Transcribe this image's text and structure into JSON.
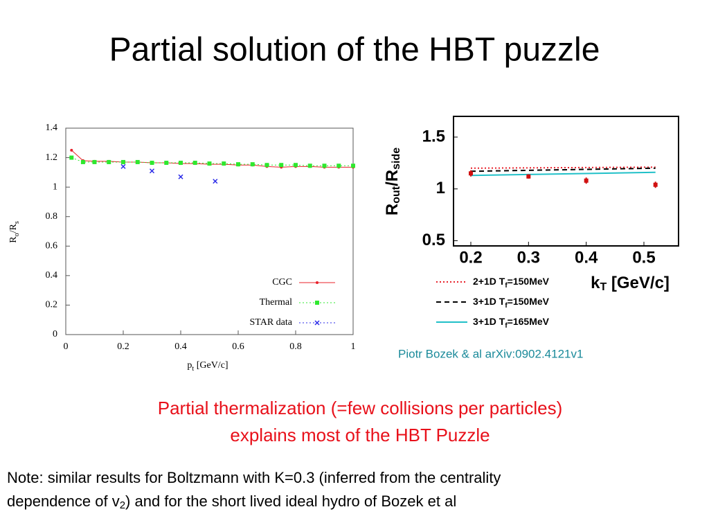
{
  "slide": {
    "title": "Partial solution of the HBT puzzle",
    "credit": "Piotr Bozek & al arXiv:0902.4121v1",
    "conclusion": [
      "Partial thermalization (=few collisions per particles)",
      "explains most of the HBT Puzzle"
    ],
    "note": {
      "line1": "Note: similar results for  Boltzmann with K=0.3 (inferred from the centrality",
      "line2": [
        "dependence of v",
        "2",
        ") and for the short lived ideal hydro of Bozek et al"
      ]
    }
  },
  "chart_data": [
    {
      "type": "line",
      "xlabel": [
        "p",
        "t",
        " [GeV/c]"
      ],
      "ylabel": [
        "R",
        "o",
        "/R",
        "s"
      ],
      "xlim": [
        0,
        1
      ],
      "xticks": [
        0,
        0.2,
        0.4,
        0.6,
        0.8,
        1
      ],
      "ylim": [
        0,
        1.4
      ],
      "yticks": [
        0,
        0.2,
        0.4,
        0.6,
        0.8,
        1,
        1.2,
        1.4
      ],
      "legend": "lower right",
      "series": [
        {
          "name": "CGC",
          "color": "#e8202a",
          "style": "line",
          "dash": "solid",
          "marker": "dot",
          "x": [
            0.02,
            0.06,
            0.1,
            0.15,
            0.2,
            0.25,
            0.3,
            0.35,
            0.4,
            0.45,
            0.5,
            0.55,
            0.6,
            0.65,
            0.7,
            0.75,
            0.8,
            0.85,
            0.9,
            0.95,
            1.0
          ],
          "values": [
            1.25,
            1.18,
            1.175,
            1.175,
            1.17,
            1.17,
            1.165,
            1.165,
            1.16,
            1.16,
            1.155,
            1.155,
            1.15,
            1.15,
            1.14,
            1.135,
            1.14,
            1.14,
            1.135,
            1.135,
            1.135
          ]
        },
        {
          "name": "Thermal",
          "color": "#2ee82e",
          "style": "line",
          "dash": "dotted",
          "marker": "square",
          "x": [
            0.02,
            0.06,
            0.1,
            0.15,
            0.2,
            0.25,
            0.3,
            0.35,
            0.4,
            0.45,
            0.5,
            0.55,
            0.6,
            0.65,
            0.7,
            0.75,
            0.8,
            0.85,
            0.9,
            0.95,
            1.0
          ],
          "values": [
            1.2,
            1.17,
            1.17,
            1.17,
            1.17,
            1.17,
            1.165,
            1.165,
            1.165,
            1.165,
            1.16,
            1.16,
            1.155,
            1.155,
            1.15,
            1.15,
            1.15,
            1.145,
            1.145,
            1.145,
            1.145
          ]
        },
        {
          "name": "STAR data",
          "color": "#2a2ae8",
          "style": "points",
          "dash": "dotted",
          "marker": "x",
          "x": [
            0.2,
            0.3,
            0.4,
            0.52
          ],
          "values": [
            1.14,
            1.11,
            1.07,
            1.04
          ]
        }
      ]
    },
    {
      "type": "line",
      "xlabel": [
        "k",
        "T",
        " [GeV/c]"
      ],
      "ylabel": [
        "R",
        "out",
        "/R",
        "side"
      ],
      "xlim": [
        0.17,
        0.56
      ],
      "xticks": [
        0.2,
        0.3,
        0.4,
        0.5
      ],
      "ylim": [
        0.45,
        1.7
      ],
      "yticks": [
        0.5,
        1,
        1.5
      ],
      "legend": "below",
      "series": [
        {
          "name": [
            "2+1D T",
            "f",
            "=150MeV"
          ],
          "color": "#e8202a",
          "style": "line",
          "dash": "dotted",
          "x": [
            0.2,
            0.52
          ],
          "values": [
            1.2,
            1.21
          ]
        },
        {
          "name": [
            "3+1D T",
            "f",
            "=150MeV"
          ],
          "color": "#000000",
          "style": "line",
          "dash": "dashed",
          "x": [
            0.2,
            0.52
          ],
          "values": [
            1.17,
            1.2
          ]
        },
        {
          "name": [
            "3+1D T",
            "f",
            "=165MeV"
          ],
          "color": "#20c0c8",
          "style": "line",
          "dash": "solid",
          "x": [
            0.2,
            0.52
          ],
          "values": [
            1.13,
            1.16
          ]
        },
        {
          "color": "#d01010",
          "style": "points",
          "marker": "square",
          "x": [
            0.2,
            0.3,
            0.4,
            0.52
          ],
          "values": [
            1.15,
            1.12,
            1.08,
            1.04
          ],
          "errors": [
            0.03,
            0.02,
            0.03,
            0.03
          ]
        }
      ]
    }
  ]
}
